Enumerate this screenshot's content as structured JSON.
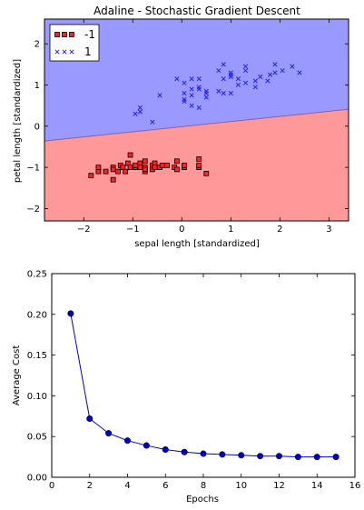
{
  "colors": {
    "region_neg": "#ff9999",
    "region_pos": "#9999ff",
    "marker_neg": "#ff2222",
    "marker_pos": "#2222ff",
    "cost_line": "#0000cc"
  },
  "chart_data": [
    {
      "type": "scatter",
      "title": "Adaline - Stochastic Gradient Descent",
      "xlabel": "sepal length [standardized]",
      "ylabel": "petal length [standardized]",
      "xlim": [
        -2.8,
        3.4
      ],
      "ylim": [
        -2.3,
        2.6
      ],
      "xticks": [
        -2,
        -1,
        0,
        1,
        2,
        3
      ],
      "yticks": [
        -2,
        -1,
        0,
        1,
        2
      ],
      "xtick_labels": [
        "−2",
        "−1",
        "0",
        "1",
        "2",
        "3"
      ],
      "ytick_labels": [
        "−2",
        "−1",
        "0",
        "1",
        "2"
      ],
      "grid": false,
      "legend_position": "top-left",
      "decision_boundary": {
        "x": [
          -2.8,
          3.4
        ],
        "y": [
          -0.36,
          0.41
        ]
      },
      "series": [
        {
          "name": "-1",
          "marker": "square",
          "points": [
            [
              -1.85,
              -1.2
            ],
            [
              -1.7,
              -1.1
            ],
            [
              -1.7,
              -1.0
            ],
            [
              -1.55,
              -1.1
            ],
            [
              -1.4,
              -1.3
            ],
            [
              -1.4,
              -1.0
            ],
            [
              -1.4,
              -1.05
            ],
            [
              -1.3,
              -1.1
            ],
            [
              -1.25,
              -0.95
            ],
            [
              -1.2,
              -1.0
            ],
            [
              -1.15,
              -1.1
            ],
            [
              -1.1,
              -0.9
            ],
            [
              -1.05,
              -1.0
            ],
            [
              -1.05,
              -0.7
            ],
            [
              -0.95,
              -1.0
            ],
            [
              -0.95,
              -0.95
            ],
            [
              -0.85,
              -0.9
            ],
            [
              -0.85,
              -1.0
            ],
            [
              -0.75,
              -1.0
            ],
            [
              -0.75,
              -1.1
            ],
            [
              -0.75,
              -1.05
            ],
            [
              -0.75,
              -0.85
            ],
            [
              -0.6,
              -0.95
            ],
            [
              -0.6,
              -1.05
            ],
            [
              -0.55,
              -0.9
            ],
            [
              -0.55,
              -1.0
            ],
            [
              -0.45,
              -1.0
            ],
            [
              -0.4,
              -0.95
            ],
            [
              -0.3,
              -0.95
            ],
            [
              -0.15,
              -1.0
            ],
            [
              -0.1,
              -1.05
            ],
            [
              -0.1,
              -0.85
            ],
            [
              0.05,
              -1.0
            ],
            [
              0.05,
              -0.95
            ],
            [
              0.35,
              -1.0
            ],
            [
              0.35,
              -0.8
            ],
            [
              0.35,
              -0.95
            ],
            [
              0.5,
              -1.15
            ]
          ]
        },
        {
          "name": "1",
          "marker": "x",
          "points": [
            [
              -0.95,
              0.3
            ],
            [
              -0.85,
              0.35
            ],
            [
              -0.85,
              0.45
            ],
            [
              -0.6,
              0.1
            ],
            [
              -0.45,
              0.75
            ],
            [
              -0.1,
              1.15
            ],
            [
              0.05,
              0.65
            ],
            [
              0.05,
              0.8
            ],
            [
              0.05,
              0.6
            ],
            [
              0.05,
              1.05
            ],
            [
              0.2,
              0.5
            ],
            [
              0.2,
              0.75
            ],
            [
              0.2,
              1.15
            ],
            [
              0.2,
              0.9
            ],
            [
              0.35,
              0.95
            ],
            [
              0.35,
              0.9
            ],
            [
              0.35,
              0.45
            ],
            [
              0.35,
              1.15
            ],
            [
              0.5,
              0.7
            ],
            [
              0.5,
              0.8
            ],
            [
              0.5,
              0.85
            ],
            [
              0.75,
              1.35
            ],
            [
              0.75,
              0.85
            ],
            [
              0.85,
              1.15
            ],
            [
              0.85,
              0.8
            ],
            [
              0.85,
              1.5
            ],
            [
              1.0,
              1.3
            ],
            [
              1.0,
              1.2
            ],
            [
              1.0,
              1.25
            ],
            [
              1.0,
              0.8
            ],
            [
              1.15,
              1.0
            ],
            [
              1.15,
              1.15
            ],
            [
              1.3,
              1.35
            ],
            [
              1.3,
              1.05
            ],
            [
              1.3,
              1.45
            ],
            [
              1.5,
              1.1
            ],
            [
              1.5,
              0.95
            ],
            [
              1.6,
              1.2
            ],
            [
              1.75,
              1.1
            ],
            [
              1.8,
              1.25
            ],
            [
              1.9,
              1.5
            ],
            [
              1.9,
              1.3
            ],
            [
              2.05,
              1.35
            ],
            [
              2.25,
              1.45
            ],
            [
              2.4,
              1.3
            ]
          ]
        }
      ]
    },
    {
      "type": "line",
      "title": "",
      "xlabel": "Epochs",
      "ylabel": "Average Cost",
      "xlim": [
        0,
        16
      ],
      "ylim": [
        0,
        0.25
      ],
      "xticks": [
        0,
        2,
        4,
        6,
        8,
        10,
        12,
        14,
        16
      ],
      "yticks": [
        0,
        0.05,
        0.1,
        0.15,
        0.2,
        0.25
      ],
      "xtick_labels": [
        "0",
        "2",
        "4",
        "6",
        "8",
        "10",
        "12",
        "14",
        "16"
      ],
      "ytick_labels": [
        "0.00",
        "0.05",
        "0.10",
        "0.15",
        "0.20",
        "0.25"
      ],
      "grid": false,
      "x": [
        1,
        2,
        3,
        4,
        5,
        6,
        7,
        8,
        9,
        10,
        11,
        12,
        13,
        14,
        15
      ],
      "y": [
        0.201,
        0.072,
        0.054,
        0.045,
        0.039,
        0.034,
        0.031,
        0.029,
        0.028,
        0.027,
        0.026,
        0.026,
        0.025,
        0.025,
        0.025
      ]
    }
  ]
}
